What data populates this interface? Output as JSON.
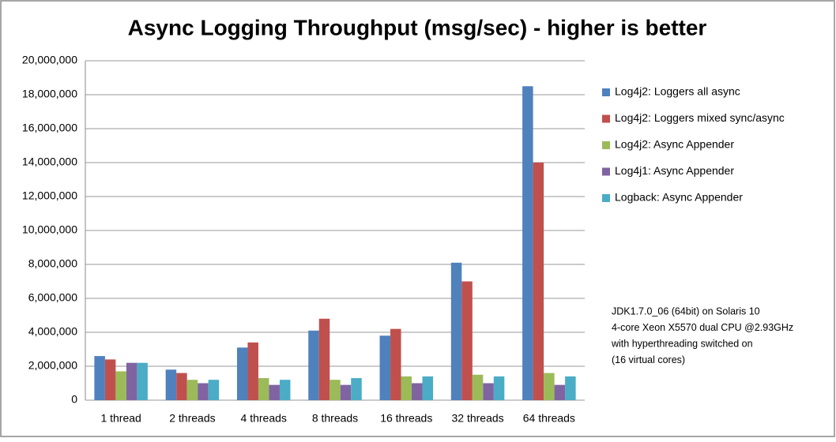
{
  "chart_data": {
    "type": "bar",
    "title": "Async Logging Throughput (msg/sec) - higher is better",
    "categories": [
      "1 thread",
      "2 threads",
      "4 threads",
      "8 threads",
      "16 threads",
      "32 threads",
      "64 threads"
    ],
    "series": [
      {
        "name": "Log4j2: Loggers all async",
        "color": "#4f81bd",
        "values": [
          2600000,
          1800000,
          3100000,
          4100000,
          3800000,
          8100000,
          18500000
        ]
      },
      {
        "name": "Log4j2: Loggers mixed sync/async",
        "color": "#c0504d",
        "values": [
          2400000,
          1600000,
          3400000,
          4800000,
          4200000,
          7000000,
          14000000
        ]
      },
      {
        "name": "Log4j2: Async Appender",
        "color": "#9bbb59",
        "values": [
          1700000,
          1200000,
          1300000,
          1200000,
          1400000,
          1500000,
          1600000
        ]
      },
      {
        "name": "Log4j1: Async Appender",
        "color": "#8064a2",
        "values": [
          2200000,
          1000000,
          900000,
          900000,
          1000000,
          1000000,
          900000
        ]
      },
      {
        "name": "Logback: Async Appender",
        "color": "#4bacc6",
        "values": [
          2200000,
          1200000,
          1200000,
          1300000,
          1400000,
          1400000,
          1400000
        ]
      }
    ],
    "ylim": [
      0,
      20000000
    ],
    "yticks": [
      0,
      {
        "value": 2000000,
        "label": "2,000,000"
      },
      {
        "value": 4000000,
        "label": "4,000,000"
      },
      {
        "value": 6000000,
        "label": "6,000,000"
      },
      {
        "value": 8000000,
        "label": "8,000,000"
      },
      {
        "value": 10000000,
        "label": "10,000,000"
      },
      {
        "value": 12000000,
        "label": "12,000,000"
      },
      {
        "value": 14000000,
        "label": "14,000,000"
      },
      {
        "value": 16000000,
        "label": "16,000,000"
      },
      {
        "value": 18000000,
        "label": "18,000,000"
      },
      {
        "value": 20000000,
        "label": "20,000,000"
      }
    ],
    "grid": true,
    "legend": "right",
    "annotation": [
      "JDK1.7.0_06 (64bit) on Solaris 10",
      "4-core Xeon X5570 dual CPU @2.93GHz",
      "with hyperthreading switched on",
      "(16 virtual cores)"
    ]
  }
}
